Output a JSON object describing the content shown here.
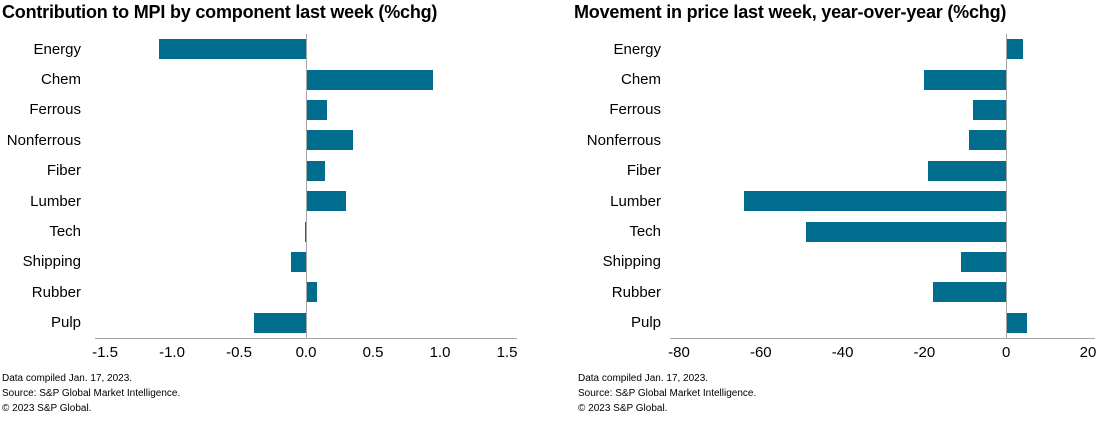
{
  "colors": {
    "bar": "#006d8f",
    "axis_line": "#a6a6a6",
    "zero_line": "#a6a6a6",
    "text": "#000000",
    "background": "#ffffff"
  },
  "chart_data": [
    {
      "type": "bar",
      "orientation": "horizontal",
      "title": "Contribution to MPI by component last week (%chg)",
      "categories": [
        "Energy",
        "Chem",
        "Ferrous",
        "Nonferrous",
        "Fiber",
        "Lumber",
        "Tech",
        "Shipping",
        "Rubber",
        "Pulp"
      ],
      "values": [
        -1.1,
        0.95,
        0.16,
        0.35,
        0.14,
        0.3,
        -0.01,
        -0.11,
        0.08,
        -0.39
      ],
      "xlim": [
        -1.5,
        1.5
      ],
      "xtick_labels": [
        "-1.5",
        "-1.0",
        "-0.5",
        "0.0",
        "0.5",
        "1.0",
        "1.5"
      ],
      "xtick_values": [
        -1.5,
        -1.0,
        -0.5,
        0.0,
        0.5,
        1.0,
        1.5
      ],
      "bar_color": "#006d8f",
      "grid": false,
      "legend": "none",
      "footnotes": [
        "Data compiled Jan. 17, 2023.",
        "Source: S&P Global Market Intelligence.",
        "© 2023 S&P Global."
      ]
    },
    {
      "type": "bar",
      "orientation": "horizontal",
      "title": "Movement in price last week, year-over-year (%chg)",
      "categories": [
        "Energy",
        "Chem",
        "Ferrous",
        "Nonferrous",
        "Fiber",
        "Lumber",
        "Tech",
        "Shipping",
        "Rubber",
        "Pulp"
      ],
      "values": [
        4,
        -20,
        -8,
        -9,
        -19,
        -64,
        -49,
        -11,
        -18,
        5
      ],
      "xlim": [
        -80,
        20
      ],
      "xtick_labels": [
        "-80",
        "-60",
        "-40",
        "-20",
        "0",
        "20"
      ],
      "xtick_values": [
        -80,
        -60,
        -40,
        -20,
        0,
        20
      ],
      "bar_color": "#006d8f",
      "grid": false,
      "legend": "none",
      "footnotes": [
        "Data compiled Jan. 17, 2023.",
        "Source: S&P Global Market Intelligence.",
        "© 2023 S&P Global."
      ]
    }
  ]
}
